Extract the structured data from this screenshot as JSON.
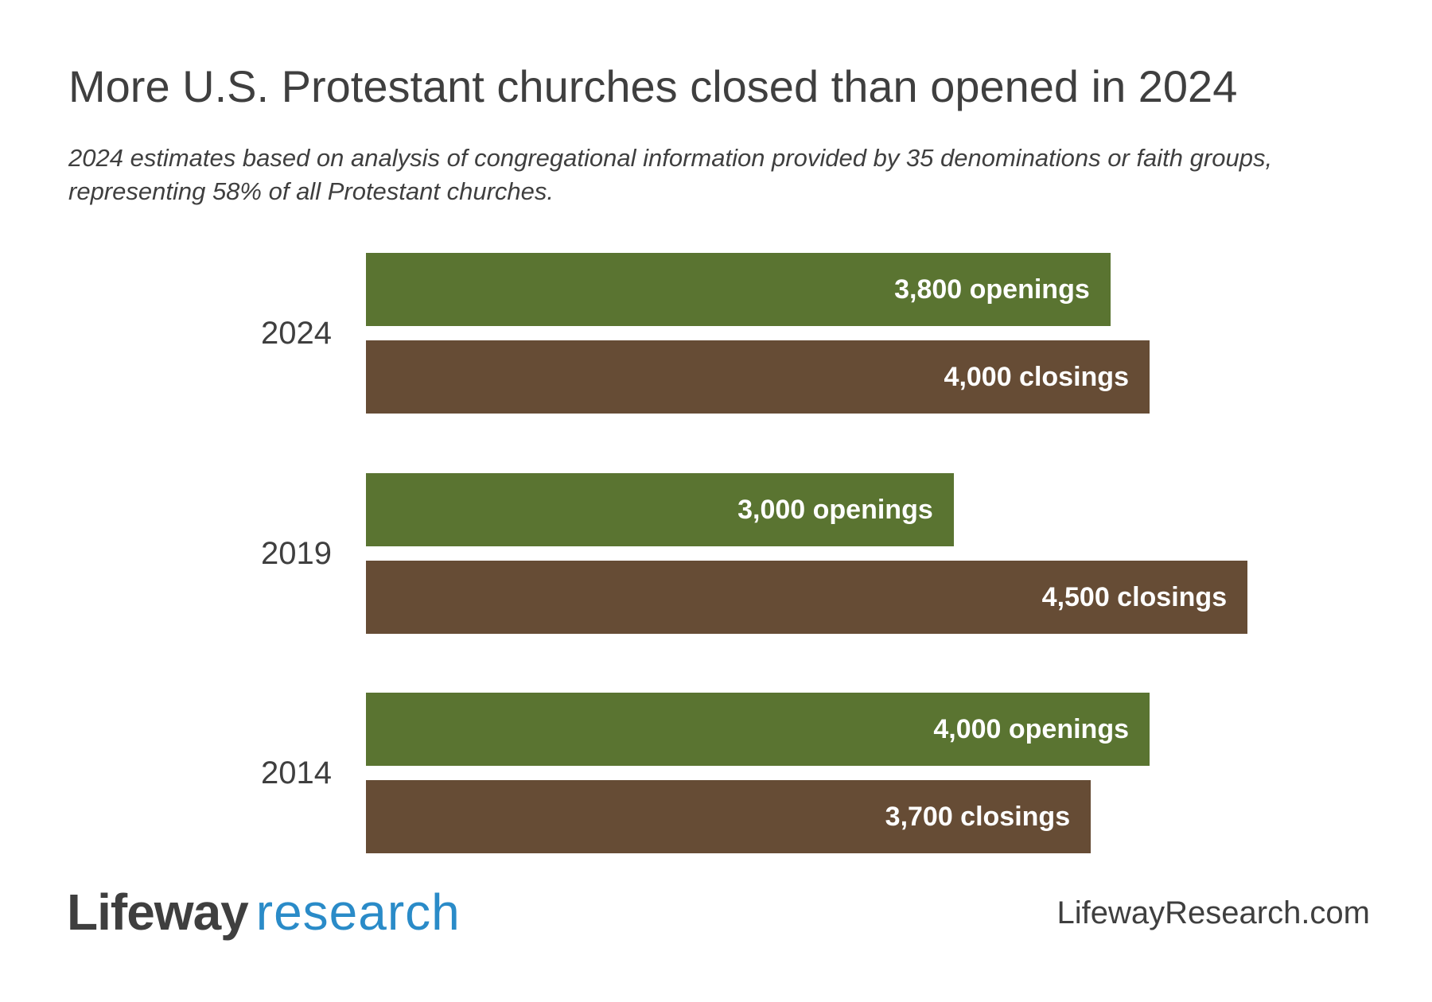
{
  "title": "More U.S. Protestant churches closed than opened in 2024",
  "subtitle": "2024 estimates based on analysis of congregational information provided by 35 denominations or faith groups, representing 58% of all Protestant churches.",
  "chart_data": {
    "type": "bar",
    "orientation": "horizontal",
    "categories": [
      "2024",
      "2019",
      "2014"
    ],
    "series": [
      {
        "name": "openings",
        "values": [
          3800,
          3000,
          4000
        ],
        "labels": [
          "3,800 openings",
          "3,000 openings",
          "4,000 openings"
        ],
        "color": "#5a7431"
      },
      {
        "name": "closings",
        "values": [
          4000,
          4500,
          3700
        ],
        "labels": [
          "4,000 closings",
          "4,500 closings",
          "3,700 closings"
        ],
        "color": "#664c35"
      }
    ],
    "xlim": [
      0,
      4500
    ],
    "grid": false,
    "axes_visible": false
  },
  "footer": {
    "logo_part1": "Lifeway",
    "logo_part2": "research",
    "logo_accent": "#2a8bc8",
    "url": "LifewayResearch.com"
  }
}
